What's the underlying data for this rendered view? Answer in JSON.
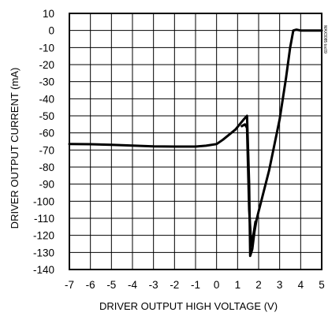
{
  "chart_data": {
    "type": "line",
    "title": "",
    "xlabel": "DRIVER OUTPUT HIGH VOLTAGE (V)",
    "ylabel": "DRIVER OUTPUT CURRENT (mA)",
    "xlim": [
      -7,
      5
    ],
    "ylim": [
      -140,
      10
    ],
    "x_ticks": [
      -7,
      -6,
      -5,
      -4,
      -3,
      -2,
      -1,
      0,
      1,
      2,
      3,
      4,
      5
    ],
    "x_tick_labels": [
      "-7",
      "-6",
      "-5",
      "-4",
      "-3",
      "-2",
      "-1",
      "0",
      "1",
      "2",
      "3",
      "4",
      "5"
    ],
    "y_ticks": [
      10,
      0,
      -10,
      -20,
      -30,
      -40,
      -50,
      -60,
      -70,
      -80,
      -90,
      -100,
      -110,
      -120,
      -130,
      -140
    ],
    "y_tick_labels": [
      "10",
      "0",
      "-10",
      "-20",
      "-30",
      "-40",
      "-50",
      "-60",
      "-70",
      "-80",
      "-90",
      "-100",
      "-110",
      "-120",
      "-130",
      "-140"
    ],
    "grid": true,
    "watermark": "MAX3085 toc09",
    "series": [
      {
        "x": [
          -7,
          -6,
          -5,
          -4,
          -3,
          -2,
          -1,
          -0.5,
          0,
          0.3,
          0.6,
          0.9,
          1.1,
          1.3,
          1.45,
          1.55,
          1.6,
          1.7,
          1.8,
          1.9,
          2.0,
          2.5,
          3.0,
          3.3,
          3.5,
          3.65,
          3.8,
          4.0,
          5.0
        ],
        "y": [
          -66.5,
          -66.6,
          -67,
          -67.4,
          -67.9,
          -68,
          -68,
          -67.5,
          -66.5,
          -64,
          -61,
          -58,
          -55,
          -52,
          -50,
          -90,
          -132,
          -128,
          -118,
          -111,
          -106,
          -82,
          -52,
          -28,
          -10,
          0,
          0.5,
          0,
          0
        ]
      },
      {
        "x": [
          1.2,
          1.35,
          1.45,
          1.55,
          1.65,
          1.75,
          1.85
        ],
        "y": [
          -56,
          -55,
          -57,
          -105,
          -126,
          -120,
          -112
        ]
      }
    ]
  }
}
